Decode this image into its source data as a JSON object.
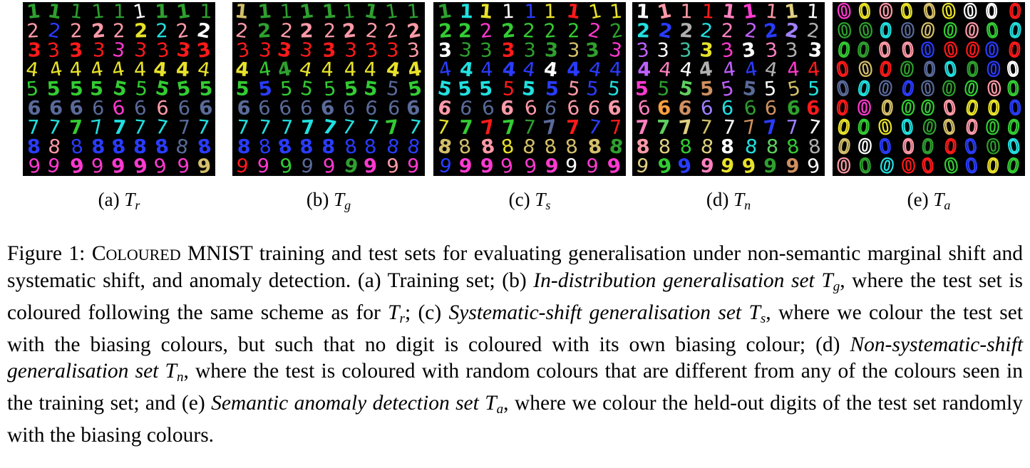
{
  "panels": [
    {
      "id": "a",
      "label": "(a)",
      "symbol": "T",
      "sub": "r",
      "rows": [
        "1",
        "2",
        "3",
        "4",
        "5",
        "6",
        "7",
        "8",
        "9"
      ],
      "scheme": "biased",
      "row_colors": [
        "#2ea02e",
        "#ff9aa8",
        "#ff1a1a",
        "#e8e22a",
        "#33cc33",
        "#5a6a9a",
        "#22e0e0",
        "#2a3cff",
        "#ff3ad0"
      ]
    },
    {
      "id": "b",
      "label": "(b)",
      "symbol": "T",
      "sub": "g",
      "rows": [
        "1",
        "2",
        "3",
        "4",
        "5",
        "6",
        "7",
        "8",
        "9"
      ],
      "scheme": "biased",
      "row_colors": [
        "#2ea02e",
        "#ff9aa8",
        "#ff1a1a",
        "#e8e22a",
        "#33cc33",
        "#5a6a9a",
        "#22e0e0",
        "#2a3cff",
        "#ff3ad0"
      ]
    },
    {
      "id": "c",
      "label": "(c)",
      "symbol": "T",
      "sub": "s",
      "rows": [
        "1",
        "2",
        "3",
        "4",
        "5",
        "6",
        "7",
        "8",
        "9"
      ],
      "scheme": "shifted",
      "row_colors": [
        "#e8e22a",
        "#33cc33",
        "#2ea02e",
        "#2a3cff",
        "#22e0e0",
        "#ff9aa8",
        "#ff1a1a",
        "#d4c06a",
        "#ff3ad0"
      ]
    },
    {
      "id": "d",
      "label": "(d)",
      "symbol": "T",
      "sub": "n",
      "rows": [
        "1",
        "2",
        "3",
        "4",
        "5",
        "6",
        "7",
        "8",
        "9"
      ],
      "scheme": "random",
      "row_colors": [
        "#c060ff",
        "#ff80c0",
        "#e0d080",
        "#b0b0b0",
        "#40c0a0",
        "#ffa040",
        "#a080ff",
        "#60d060",
        "#d09060"
      ]
    },
    {
      "id": "e",
      "label": "(e)",
      "symbol": "T",
      "sub": "a",
      "rows": [
        "0",
        "0",
        "0",
        "0",
        "0",
        "0",
        "0",
        "0",
        "0"
      ],
      "scheme": "anomaly",
      "row_colors": [
        "#2a3cff",
        "#22e0e0",
        "#ff3ad0",
        "#33cc33",
        "#ff1a1a",
        "#e8e22a",
        "#ff9aa8",
        "#2ea02e",
        "#5a6a9a"
      ]
    }
  ],
  "palette": [
    "#ff1a1a",
    "#33cc33",
    "#2a3cff",
    "#e8e22a",
    "#22e0e0",
    "#ff3ad0",
    "#ff9aa8",
    "#2ea02e",
    "#5a6a9a",
    "#d4c06a",
    "#ffffff"
  ],
  "caption": {
    "fig": "Figure 1:",
    "name_cap1": "C",
    "name_small": "OLOURED",
    "name_rest": "MNIST training and test sets for evaluating generalisation under non-semantic marginal shift and systematic shift, and anomaly detection. (a) Training set; (b)",
    "b_italic": "In-distribution generalisation set",
    "b_sym": "T",
    "b_sub": "g",
    "b_text": ", where the test set is coloured following the same scheme as for",
    "b_sym2": "T",
    "b_sub2": "r",
    "c_pre": "; (c)",
    "c_italic": "Systematic-shift generalisation set",
    "c_sym": "T",
    "c_sub": "s",
    "c_text": ", where we colour the test set with the biasing colours, but such that no digit is coloured with its own biasing colour; (d)",
    "d_italic": "Non-systematic-shift generalisation set",
    "d_sym": "T",
    "d_sub": "n",
    "d_text": ", where the test is coloured with random colours that are different from any of the colours seen in the training set; and (e)",
    "e_italic": "Semantic anomaly detection set",
    "e_sym": "T",
    "e_sub": "a",
    "e_text": ", where we colour the held-out digits of the test set randomly with the biasing colours."
  }
}
